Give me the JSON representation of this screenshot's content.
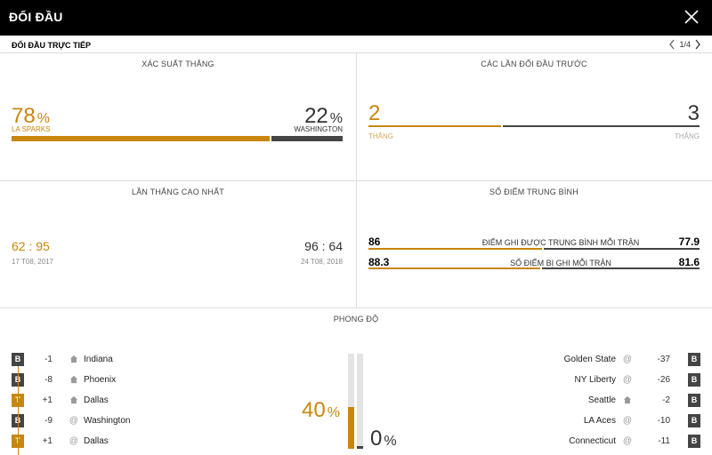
{
  "header": {
    "title": "ĐỐI ĐẦU",
    "close_icon": "close-icon"
  },
  "subbar": {
    "label": "ĐỐI ĐẦU TRỰC TIẾP",
    "page": "1/4"
  },
  "win_probability": {
    "title": "XÁC SUẤT THẮNG",
    "home": {
      "value": "78",
      "unit": "%",
      "team": "LA SPARKS"
    },
    "away": {
      "value": "22",
      "unit": "%",
      "team": "WASHINGTON"
    },
    "home_fraction": 0.78
  },
  "previous_meetings": {
    "title": "CÁC LẦN ĐỐI ĐẦU TRƯỚC",
    "home": {
      "value": "2",
      "label": "THẮNG"
    },
    "away": {
      "value": "3",
      "label": "THẮNG"
    },
    "home_fraction": 0.4
  },
  "biggest_win": {
    "title": "LẦN THẮNG CAO NHẤT",
    "home": {
      "score_a": "62",
      "sep": ":",
      "score_b": "95",
      "date": "17 T08, 2017"
    },
    "away": {
      "score_a": "96",
      "sep": ":",
      "score_b": "64",
      "date": "24 T08, 2018"
    }
  },
  "average_points": {
    "title": "SỐ ĐIỂM TRUNG BÌNH",
    "rows": [
      {
        "home": "86",
        "label": "ĐIỂM GHI ĐƯỢC TRUNG BÌNH MỖI TRẬN",
        "away": "77.9",
        "home_fraction": 0.525
      },
      {
        "home": "88.3",
        "label": "SỐ ĐIỂM BỊ GHI MỖI TRẬN",
        "away": "81.6",
        "home_fraction": 0.52
      }
    ]
  },
  "form": {
    "title": "PHONG ĐỘ",
    "home_pct": {
      "value": "40",
      "unit": "%",
      "fraction": 0.4
    },
    "away_pct": {
      "value": "0",
      "unit": "%",
      "fraction": 0.0
    },
    "home_games": [
      {
        "result": "B",
        "diff": "-1",
        "venue": "home",
        "opponent": "Indiana"
      },
      {
        "result": "B",
        "diff": "-8",
        "venue": "home",
        "opponent": "Phoenix"
      },
      {
        "result": "T",
        "diff": "+1",
        "venue": "home",
        "opponent": "Dallas"
      },
      {
        "result": "B",
        "diff": "-9",
        "venue": "away",
        "opponent": "Washington"
      },
      {
        "result": "T",
        "diff": "+1",
        "venue": "away",
        "opponent": "Dallas"
      }
    ],
    "away_games": [
      {
        "result": "B",
        "diff": "-37",
        "venue": "away",
        "opponent": "Golden State"
      },
      {
        "result": "B",
        "diff": "-26",
        "venue": "away",
        "opponent": "NY Liberty"
      },
      {
        "result": "B",
        "diff": "-2",
        "venue": "home",
        "opponent": "Seattle"
      },
      {
        "result": "B",
        "diff": "-10",
        "venue": "away",
        "opponent": "LA Aces"
      },
      {
        "result": "B",
        "diff": "-11",
        "venue": "away",
        "opponent": "Connecticut"
      }
    ]
  },
  "colors": {
    "accent": "#c8860d",
    "dark": "#444444",
    "header": "#000000"
  }
}
